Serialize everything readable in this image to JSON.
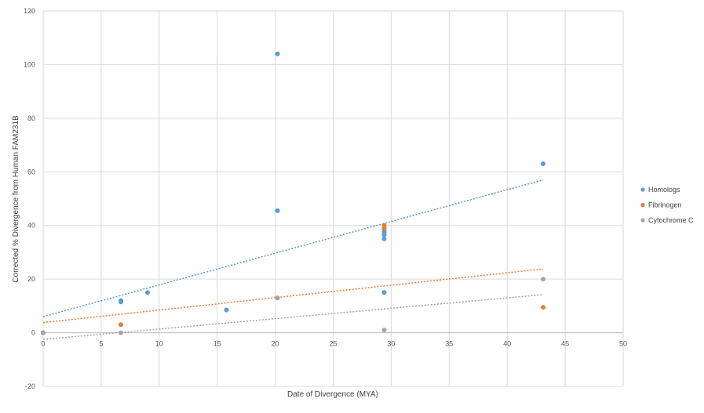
{
  "chart_data": {
    "type": "scatter",
    "title": "",
    "xlabel": "Date of Divergence (MYA)",
    "ylabel": "Corrected % Divergence from Human  FAM231B",
    "xlim": [
      0,
      50
    ],
    "ylim": [
      -20,
      120
    ],
    "x_ticks": [
      0,
      5,
      10,
      15,
      20,
      25,
      30,
      35,
      40,
      45,
      50
    ],
    "y_ticks": [
      -20,
      0,
      20,
      40,
      60,
      80,
      100,
      120
    ],
    "grid": true,
    "legend_position": "right",
    "series": [
      {
        "name": "Homologs",
        "color": "#5B9BD5",
        "points": [
          {
            "x": 0,
            "y": 0
          },
          {
            "x": 6.7,
            "y": 11.5
          },
          {
            "x": 6.7,
            "y": 12
          },
          {
            "x": 9,
            "y": 15
          },
          {
            "x": 15.8,
            "y": 8.5
          },
          {
            "x": 20.2,
            "y": 104
          },
          {
            "x": 20.2,
            "y": 45.5
          },
          {
            "x": 20.2,
            "y": 13
          },
          {
            "x": 29.4,
            "y": 38.5
          },
          {
            "x": 29.4,
            "y": 37.5
          },
          {
            "x": 29.4,
            "y": 36.5
          },
          {
            "x": 29.4,
            "y": 35
          },
          {
            "x": 29.4,
            "y": 15
          },
          {
            "x": 43.1,
            "y": 63
          }
        ],
        "trendline": {
          "x": [
            0,
            43.1
          ],
          "y": [
            6,
            57
          ]
        }
      },
      {
        "name": "Fibrinogen",
        "color": "#ED7D31",
        "points": [
          {
            "x": 0,
            "y": 0
          },
          {
            "x": 6.7,
            "y": 3
          },
          {
            "x": 29.4,
            "y": 40
          },
          {
            "x": 29.4,
            "y": 39
          },
          {
            "x": 43.1,
            "y": 9.5
          }
        ],
        "trendline": {
          "x": [
            0,
            43.1
          ],
          "y": [
            3.8,
            23.8
          ]
        }
      },
      {
        "name": "Cytochrome C",
        "color": "#A5A5A5",
        "points": [
          {
            "x": 0,
            "y": 0
          },
          {
            "x": 6.7,
            "y": 0
          },
          {
            "x": 20.2,
            "y": 13
          },
          {
            "x": 29.4,
            "y": 1
          },
          {
            "x": 43.1,
            "y": 20
          }
        ],
        "trendline": {
          "x": [
            0,
            43.1
          ],
          "y": [
            -2.5,
            14.2
          ]
        }
      }
    ]
  }
}
